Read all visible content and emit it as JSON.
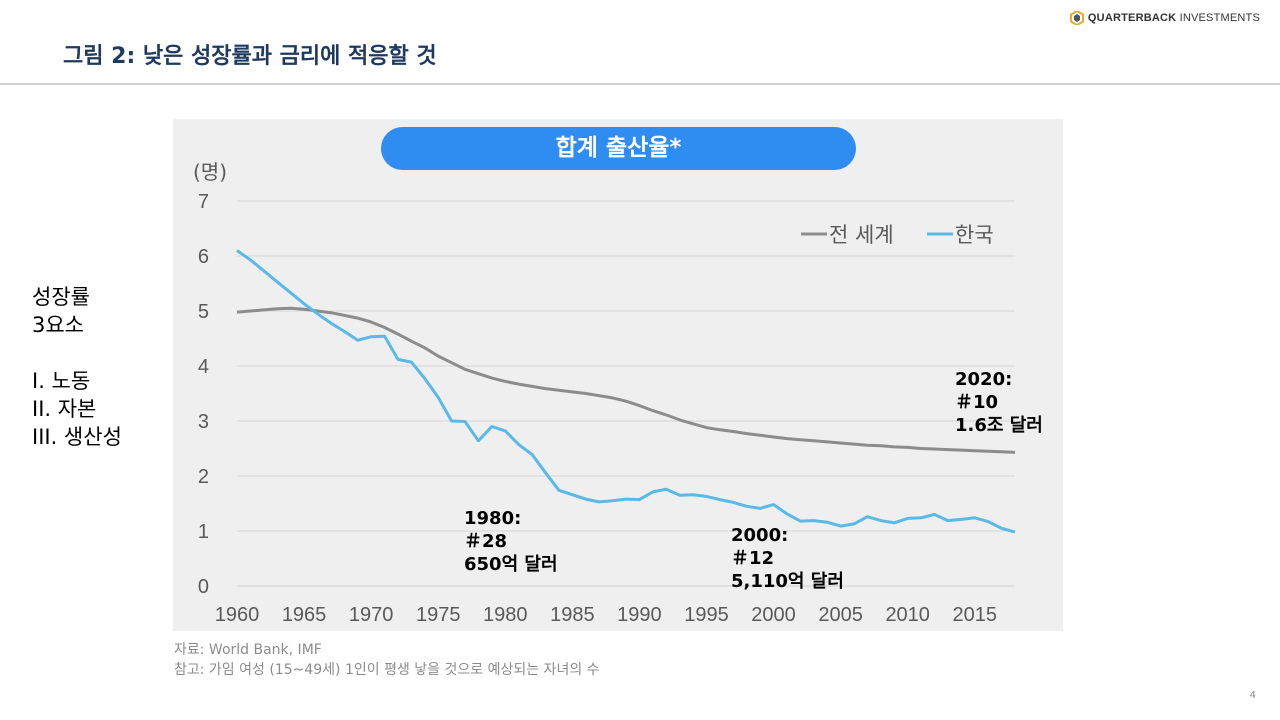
{
  "header": {
    "title": "그림 2: 낮은 성장률과 금리에 적응할 것",
    "logo_text_bold": "QUARTERBACK",
    "logo_text": "INVESTMENTS"
  },
  "left_panel": {
    "heading_line1": "성장률",
    "heading_line2": "3요소",
    "items": [
      "I. 노동",
      "II. 자본",
      "III. 생산성"
    ]
  },
  "chart_data": {
    "type": "line",
    "title": "합계 출산율*",
    "ylabel": "(명)",
    "xlabel": "",
    "ylim": [
      0,
      7
    ],
    "yticks": [
      "0",
      "1",
      "2",
      "3",
      "4",
      "5",
      "6",
      "7"
    ],
    "xticks": [
      "1960",
      "1965",
      "1970",
      "1975",
      "1980",
      "1985",
      "1990",
      "1995",
      "2000",
      "2005",
      "2010",
      "2015"
    ],
    "xrange": [
      1960,
      2018
    ],
    "grid": true,
    "legend_position": "top-right",
    "x": [
      1960,
      1961,
      1962,
      1963,
      1964,
      1965,
      1966,
      1967,
      1968,
      1969,
      1970,
      1971,
      1972,
      1973,
      1974,
      1975,
      1976,
      1977,
      1978,
      1979,
      1980,
      1981,
      1982,
      1983,
      1984,
      1985,
      1986,
      1987,
      1988,
      1989,
      1990,
      1991,
      1992,
      1993,
      1994,
      1995,
      1996,
      1997,
      1998,
      1999,
      2000,
      2001,
      2002,
      2003,
      2004,
      2005,
      2006,
      2007,
      2008,
      2009,
      2010,
      2011,
      2012,
      2013,
      2014,
      2015,
      2016,
      2017,
      2018
    ],
    "series": [
      {
        "name": "전 세계",
        "color": "#8c8c8c",
        "values": [
          4.98,
          5.0,
          5.02,
          5.04,
          5.05,
          5.03,
          5.0,
          4.97,
          4.92,
          4.87,
          4.8,
          4.7,
          4.58,
          4.45,
          4.33,
          4.18,
          4.06,
          3.94,
          3.86,
          3.78,
          3.72,
          3.67,
          3.63,
          3.59,
          3.56,
          3.53,
          3.5,
          3.46,
          3.42,
          3.36,
          3.28,
          3.19,
          3.11,
          3.02,
          2.95,
          2.88,
          2.84,
          2.81,
          2.77,
          2.74,
          2.71,
          2.68,
          2.66,
          2.64,
          2.62,
          2.6,
          2.58,
          2.56,
          2.55,
          2.53,
          2.52,
          2.5,
          2.49,
          2.48,
          2.47,
          2.46,
          2.45,
          2.44,
          2.43
        ]
      },
      {
        "name": "한국",
        "color": "#5ab9e6",
        "values": [
          6.1,
          5.93,
          5.73,
          5.53,
          5.33,
          5.13,
          4.95,
          4.78,
          4.63,
          4.47,
          4.53,
          4.54,
          4.12,
          4.07,
          3.77,
          3.43,
          3.0,
          2.99,
          2.64,
          2.9,
          2.82,
          2.57,
          2.39,
          2.06,
          1.74,
          1.66,
          1.58,
          1.53,
          1.55,
          1.58,
          1.57,
          1.71,
          1.76,
          1.65,
          1.66,
          1.63,
          1.57,
          1.52,
          1.45,
          1.41,
          1.48,
          1.31,
          1.18,
          1.19,
          1.16,
          1.09,
          1.13,
          1.26,
          1.19,
          1.15,
          1.23,
          1.24,
          1.3,
          1.19,
          1.21,
          1.24,
          1.17,
          1.05,
          0.98
        ]
      }
    ],
    "annotations": [
      {
        "id": "a1980",
        "x": 1980,
        "lines": [
          "1980:",
          "＃28",
          "650억 달러"
        ]
      },
      {
        "id": "a2000",
        "x": 2000,
        "lines": [
          "2000:",
          "＃12",
          "5,110억  달러"
        ]
      },
      {
        "id": "a2020",
        "x": 2020,
        "lines": [
          "2020:",
          "＃10",
          "1.6조 달러"
        ]
      }
    ]
  },
  "notes": {
    "source": "자료: World Bank, IMF",
    "note": "참고: 가임 여성 (15~49세) 1인이 평생 낳을 것으로 예상되는 자녀의 수"
  },
  "page_number": "4"
}
